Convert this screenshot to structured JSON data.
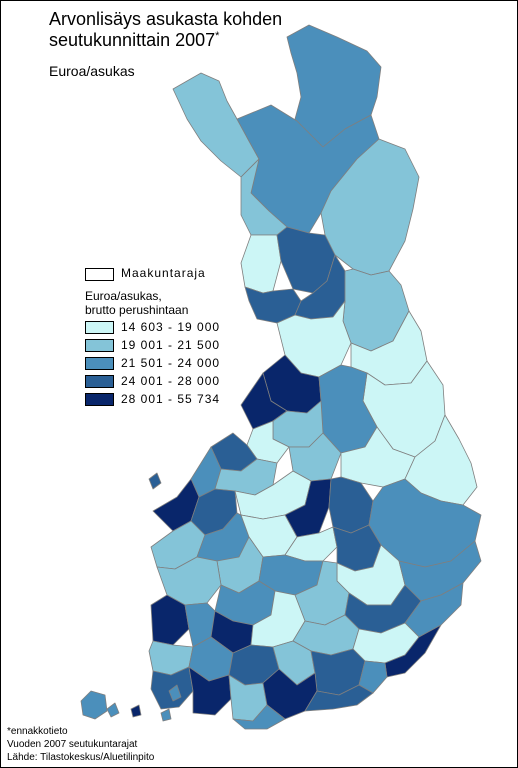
{
  "title": {
    "line1": "Arvonlisäys asukasta kohden",
    "line2": "seutukunnittain 2007",
    "marker": "*"
  },
  "subtitle": "Euroa/asukas",
  "legend": {
    "boundary_label": "Maakuntaraja",
    "heading_line1": "Euroa/asukas,",
    "heading_line2": "brutto perushintaan",
    "classes": [
      {
        "label": "14 603 - 19 000",
        "min": 14603,
        "max": 19000,
        "color": "#ccf6f6"
      },
      {
        "label": "19 001 - 21 500",
        "min": 19001,
        "max": 21500,
        "color": "#84c4d8"
      },
      {
        "label": "21 501 - 24 000",
        "min": 21501,
        "max": 24000,
        "color": "#4b8fbb"
      },
      {
        "label": "24 001 - 28 000",
        "min": 24001,
        "max": 28000,
        "color": "#2a5f95"
      },
      {
        "label": "28 001 - 55 734",
        "min": 28001,
        "max": 55734,
        "color": "#09266b"
      }
    ]
  },
  "footer": {
    "line1": "*ennakkotieto",
    "line2": "Vuoden 2007 seutukuntarajat",
    "line3": "Lähde: Tilastokeskus/Aluetilinpito"
  }
}
